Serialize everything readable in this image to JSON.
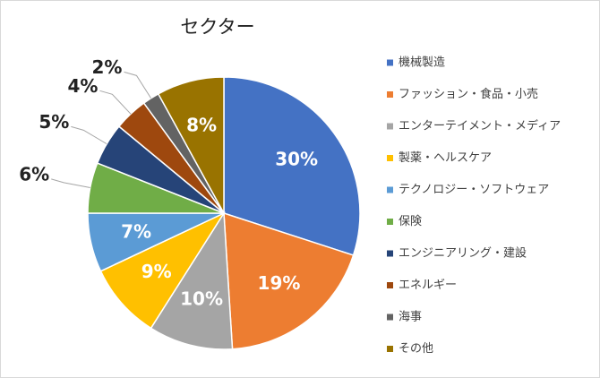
{
  "chart_data": {
    "type": "pie",
    "title": "セクター",
    "categories": [
      "機械製造",
      "ファッション・食品・小売",
      "エンターテイメント・メディア",
      "製薬・ヘルスケア",
      "テクノロジー・ソフトウェア",
      "保険",
      "エンジニアリング・建設",
      "エネルギー",
      "海事",
      "その他"
    ],
    "values": [
      30,
      19,
      10,
      9,
      7,
      6,
      5,
      4,
      2,
      8
    ],
    "value_labels": [
      "30%",
      "19%",
      "10%",
      "9%",
      "7%",
      "6%",
      "5%",
      "4%",
      "2%",
      "8%"
    ],
    "colors": [
      "#4472c4",
      "#ed7d31",
      "#a5a5a5",
      "#ffc000",
      "#5b9bd5",
      "#70ad47",
      "#264478",
      "#9e480e",
      "#636363",
      "#997300"
    ],
    "legend": "right"
  }
}
